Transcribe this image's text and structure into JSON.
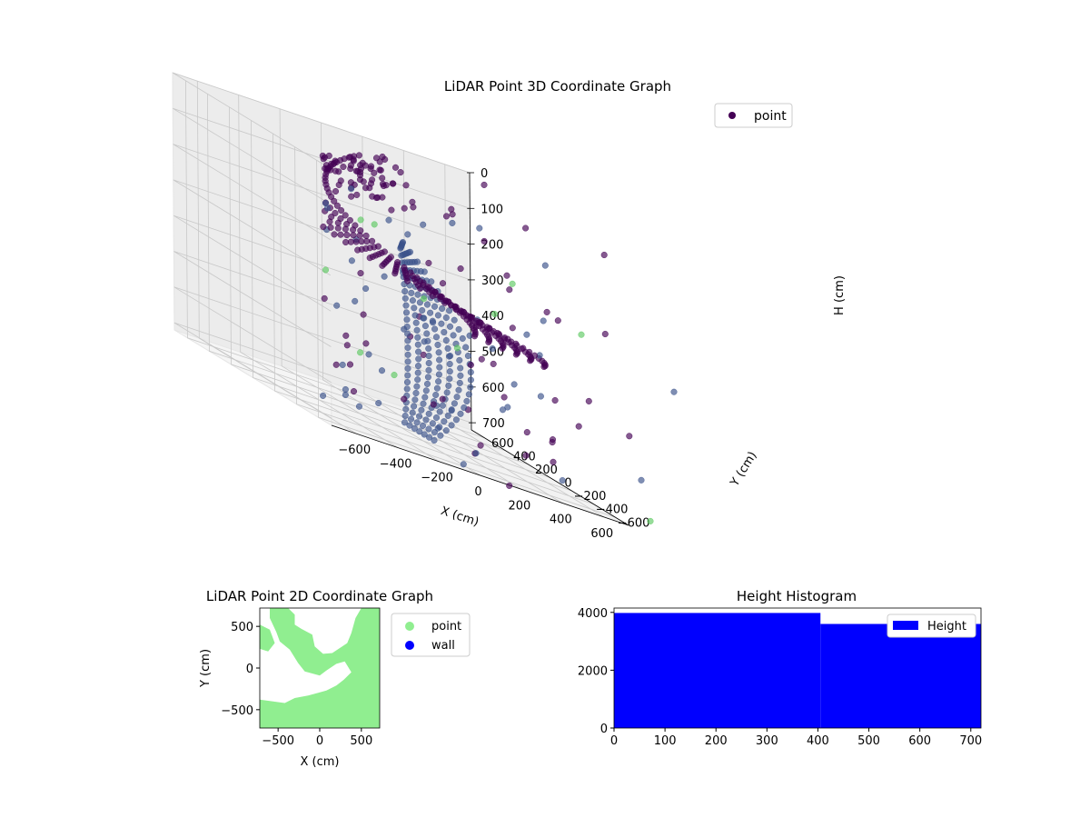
{
  "chart_data": [
    {
      "type": "scatter",
      "projection": "3d",
      "title": "LiDAR Point 3D Coordinate Graph",
      "xlabel": "X (cm)",
      "ylabel": "Y (cm)",
      "zlabel": "H (cm)",
      "xlim": [
        -720,
        720
      ],
      "ylim": [
        -720,
        720
      ],
      "zlim": [
        0,
        720
      ],
      "z_inverted": true,
      "x_ticks": [
        -600,
        -400,
        -200,
        0,
        200,
        400,
        600
      ],
      "y_ticks": [
        -600,
        -400,
        -200,
        0,
        200,
        400,
        600
      ],
      "z_ticks": [
        0,
        100,
        200,
        300,
        400,
        500,
        600,
        700
      ],
      "colormap": [
        "#440154",
        "#3b528b",
        "#21918c",
        "#5ec962",
        "#a0da39"
      ],
      "grid": true,
      "legend": {
        "position": "top-right",
        "entries": [
          {
            "label": "point",
            "color": "#440154"
          }
        ]
      },
      "series": [
        {
          "name": "point",
          "structure": "helical ramp",
          "r_range": [
            320,
            620
          ],
          "angle_range_deg": [
            80,
            340
          ],
          "h_range": [
            0,
            700
          ]
        },
        {
          "name": "point",
          "structure": "inner ramp",
          "r_range": [
            30,
            340
          ],
          "angle_range_deg": [
            -90,
            60
          ],
          "h_range": [
            220,
            700
          ]
        },
        {
          "name": "point",
          "structure": "scattered points",
          "xy_range": [
            -900,
            900
          ],
          "h_range": [
            0,
            720
          ]
        }
      ]
    },
    {
      "type": "scatter",
      "title": "LiDAR Point 2D Coordinate Graph",
      "xlabel": "X (cm)",
      "ylabel": "Y (cm)",
      "xlim": [
        -720,
        720
      ],
      "ylim": [
        -720,
        720
      ],
      "x_ticks": [
        -500,
        0,
        500
      ],
      "y_ticks": [
        -500,
        0,
        500
      ],
      "legend": {
        "position": "outside-right",
        "entries": [
          {
            "label": "point",
            "color": "#90ee90"
          },
          {
            "label": "wall",
            "color": "#0000ff"
          }
        ]
      },
      "regions": [
        {
          "name": "point",
          "polygon": [
            [
              -600,
              720
            ],
            [
              -380,
              720
            ],
            [
              -300,
              640
            ],
            [
              -300,
              520
            ],
            [
              -220,
              470
            ],
            [
              -90,
              400
            ],
            [
              -60,
              260
            ],
            [
              40,
              170
            ],
            [
              150,
              180
            ],
            [
              330,
              300
            ],
            [
              380,
              420
            ],
            [
              430,
              600
            ],
            [
              500,
              720
            ],
            [
              720,
              720
            ],
            [
              720,
              -720
            ],
            [
              -720,
              -720
            ],
            [
              -720,
              -380
            ],
            [
              -420,
              -420
            ],
            [
              -300,
              -360
            ],
            [
              -140,
              -330
            ],
            [
              80,
              -270
            ],
            [
              200,
              -210
            ],
            [
              290,
              -140
            ],
            [
              380,
              -50
            ],
            [
              300,
              80
            ],
            [
              200,
              50
            ],
            [
              80,
              -30
            ],
            [
              0,
              -90
            ],
            [
              -180,
              -40
            ],
            [
              -260,
              60
            ],
            [
              -360,
              220
            ],
            [
              -480,
              320
            ],
            [
              -520,
              430
            ],
            [
              -600,
              600
            ]
          ]
        },
        {
          "name": "point",
          "polygon": [
            [
              -720,
              520
            ],
            [
              -600,
              460
            ],
            [
              -540,
              300
            ],
            [
              -620,
              200
            ],
            [
              -720,
              230
            ]
          ]
        }
      ]
    },
    {
      "type": "bar",
      "subtype": "histogram",
      "title": "Height Histogram",
      "xlim": [
        0,
        720
      ],
      "ylim": [
        0,
        4150
      ],
      "x_ticks": [
        0,
        100,
        200,
        300,
        400,
        500,
        600,
        700
      ],
      "y_ticks": [
        0,
        2000,
        4000
      ],
      "bins": [
        {
          "from": 0,
          "to": 405,
          "value": 3980
        },
        {
          "from": 405,
          "to": 720,
          "value": 3600
        }
      ],
      "color": "#0000ff",
      "legend": {
        "position": "top-right",
        "entries": [
          {
            "label": "Height",
            "color": "#0000ff"
          }
        ]
      }
    }
  ]
}
